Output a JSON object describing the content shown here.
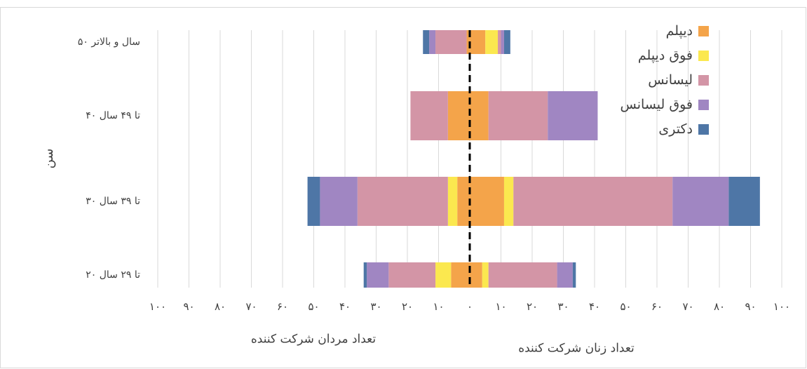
{
  "chart_data": {
    "type": "butterfly_bar",
    "categories": [
      "۵۰ سال و بالاتر",
      "۴۰ تا ۴۹ سال",
      "۳۰ تا ۳۹ سال",
      "۲۰ تا ۲۹ سال"
    ],
    "y_label": "سن",
    "x_label_left": "تعداد مردان شرکت کننده",
    "x_label_right": "تعداد زنان شرکت کننده",
    "series": [
      {
        "name": "دیپلم",
        "color": "#f4a44a",
        "men_values": [
          -1,
          -7,
          -4,
          -6
        ],
        "women_values": [
          5,
          6,
          11,
          4
        ]
      },
      {
        "name": "فوق دیپلم",
        "color": "#fbe84f",
        "men_values": [
          0,
          0,
          -3,
          -5
        ],
        "women_values": [
          4,
          0,
          3,
          2
        ]
      },
      {
        "name": "لیسانس",
        "color": "#d395a6",
        "men_values": [
          -10,
          -12,
          -29,
          -15
        ],
        "women_values": [
          1,
          19,
          51,
          22
        ]
      },
      {
        "name": "فوق لیسانس",
        "color": "#a086c2",
        "men_values": [
          -2,
          0,
          -12,
          -7
        ],
        "women_values": [
          1,
          16,
          18,
          5
        ]
      },
      {
        "name": "دکتری",
        "color": "#4e76a6",
        "men_values": [
          -2,
          0,
          -4,
          -1
        ],
        "women_values": [
          2,
          0,
          10,
          1
        ]
      }
    ],
    "xlim": [
      -100,
      100
    ],
    "xticks": [
      {
        "value": -100,
        "label": "۱۰۰"
      },
      {
        "value": -90,
        "label": "۹۰"
      },
      {
        "value": -80,
        "label": "۸۰"
      },
      {
        "value": -70,
        "label": "۷۰"
      },
      {
        "value": -60,
        "label": "۶۰"
      },
      {
        "value": -50,
        "label": "۵۰"
      },
      {
        "value": -40,
        "label": "۴۰"
      },
      {
        "value": -30,
        "label": "۳۰"
      },
      {
        "value": -20,
        "label": "۲۰"
      },
      {
        "value": -10,
        "label": "۱۰"
      },
      {
        "value": 0,
        "label": "۰"
      },
      {
        "value": 10,
        "label": "۱۰"
      },
      {
        "value": 20,
        "label": "۲۰"
      },
      {
        "value": 30,
        "label": "۳۰"
      },
      {
        "value": 40,
        "label": "۴۰"
      },
      {
        "value": 50,
        "label": "۵۰"
      },
      {
        "value": 60,
        "label": "۶۰"
      },
      {
        "value": 70,
        "label": "۷۰"
      },
      {
        "value": 80,
        "label": "۸۰"
      },
      {
        "value": 90,
        "label": "۹۰"
      },
      {
        "value": 100,
        "label": "۱۰۰"
      }
    ],
    "grid": true,
    "legend": "top-right"
  }
}
